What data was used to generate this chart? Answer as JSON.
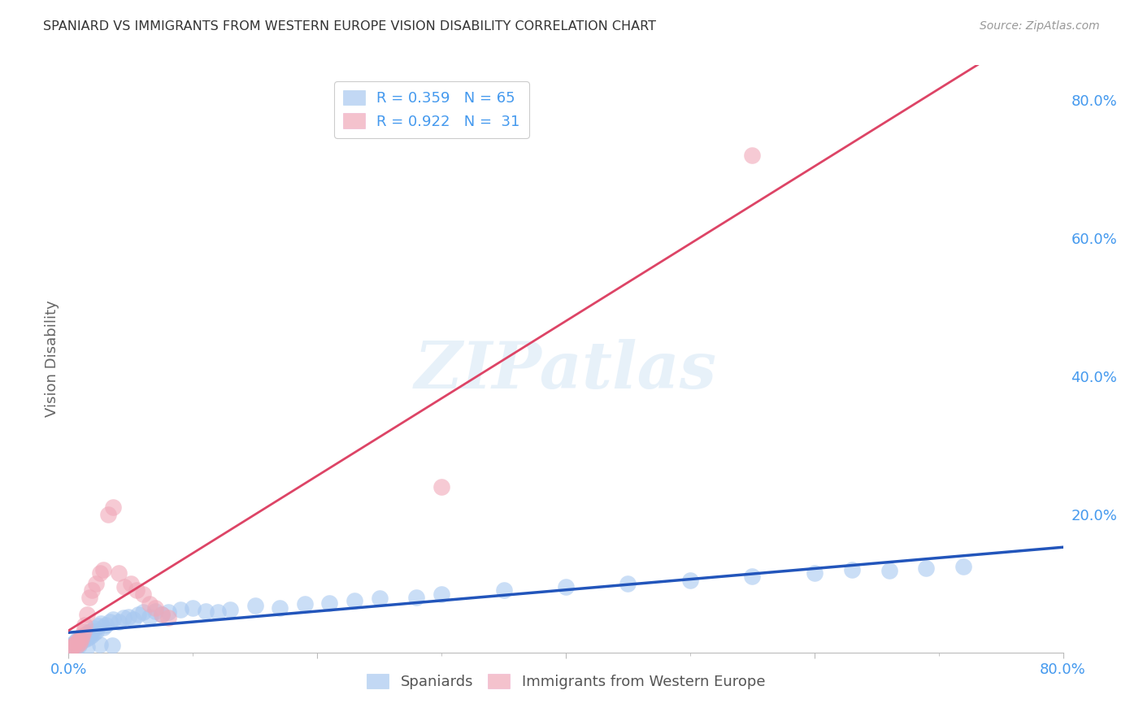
{
  "title": "SPANIARD VS IMMIGRANTS FROM WESTERN EUROPE VISION DISABILITY CORRELATION CHART",
  "source": "Source: ZipAtlas.com",
  "ylabel": "Vision Disability",
  "ytick_labels": [
    "20.0%",
    "40.0%",
    "60.0%",
    "80.0%"
  ],
  "ytick_values": [
    0.2,
    0.4,
    0.6,
    0.8
  ],
  "xlim": [
    0.0,
    0.8
  ],
  "ylim": [
    0.0,
    0.85
  ],
  "watermark": "ZIPatlas",
  "spaniards_color": "#a8c8f0",
  "immigrants_color": "#f0a8b8",
  "spaniards_line_color": "#2255bb",
  "immigrants_line_color": "#dd4466",
  "background_color": "#ffffff",
  "grid_color": "#cccccc",
  "sp_x": [
    0.002,
    0.003,
    0.004,
    0.005,
    0.006,
    0.007,
    0.008,
    0.009,
    0.01,
    0.011,
    0.012,
    0.013,
    0.014,
    0.015,
    0.016,
    0.017,
    0.018,
    0.019,
    0.02,
    0.021,
    0.022,
    0.024,
    0.026,
    0.028,
    0.03,
    0.033,
    0.036,
    0.04,
    0.044,
    0.048,
    0.052,
    0.056,
    0.06,
    0.065,
    0.07,
    0.075,
    0.08,
    0.09,
    0.1,
    0.11,
    0.12,
    0.13,
    0.15,
    0.17,
    0.19,
    0.21,
    0.23,
    0.25,
    0.28,
    0.3,
    0.35,
    0.4,
    0.45,
    0.5,
    0.55,
    0.6,
    0.63,
    0.66,
    0.69,
    0.72,
    0.005,
    0.008,
    0.015,
    0.025,
    0.035
  ],
  "sp_y": [
    0.008,
    0.012,
    0.01,
    0.015,
    0.012,
    0.018,
    0.014,
    0.02,
    0.016,
    0.022,
    0.018,
    0.025,
    0.02,
    0.028,
    0.022,
    0.03,
    0.024,
    0.032,
    0.028,
    0.035,
    0.03,
    0.038,
    0.042,
    0.036,
    0.04,
    0.044,
    0.048,
    0.045,
    0.05,
    0.052,
    0.048,
    0.055,
    0.058,
    0.052,
    0.06,
    0.055,
    0.058,
    0.062,
    0.065,
    0.06,
    0.058,
    0.062,
    0.068,
    0.065,
    0.07,
    0.072,
    0.075,
    0.078,
    0.08,
    0.085,
    0.09,
    0.095,
    0.1,
    0.105,
    0.11,
    0.115,
    0.12,
    0.118,
    0.122,
    0.125,
    0.005,
    0.01,
    0.008,
    0.012,
    0.01
  ],
  "im_x": [
    0.002,
    0.003,
    0.004,
    0.005,
    0.006,
    0.007,
    0.008,
    0.009,
    0.01,
    0.011,
    0.012,
    0.013,
    0.015,
    0.017,
    0.019,
    0.022,
    0.025,
    0.028,
    0.032,
    0.036,
    0.04,
    0.045,
    0.05,
    0.055,
    0.06,
    0.065,
    0.07,
    0.075,
    0.08,
    0.3,
    0.55
  ],
  "im_y": [
    0.005,
    0.008,
    0.01,
    0.012,
    0.015,
    0.01,
    0.018,
    0.014,
    0.02,
    0.025,
    0.03,
    0.04,
    0.055,
    0.08,
    0.09,
    0.1,
    0.115,
    0.12,
    0.2,
    0.21,
    0.115,
    0.095,
    0.1,
    0.09,
    0.085,
    0.07,
    0.065,
    0.055,
    0.05,
    0.24,
    0.72
  ],
  "legend_text_sp": "R = 0.359   N = 65",
  "legend_text_im": "R = 0.922   N =  31",
  "label_spaniards": "Spaniards",
  "label_immigrants": "Immigrants from Western Europe",
  "tick_color": "#4499ee",
  "title_color": "#333333",
  "source_color": "#999999",
  "ylabel_color": "#666666"
}
